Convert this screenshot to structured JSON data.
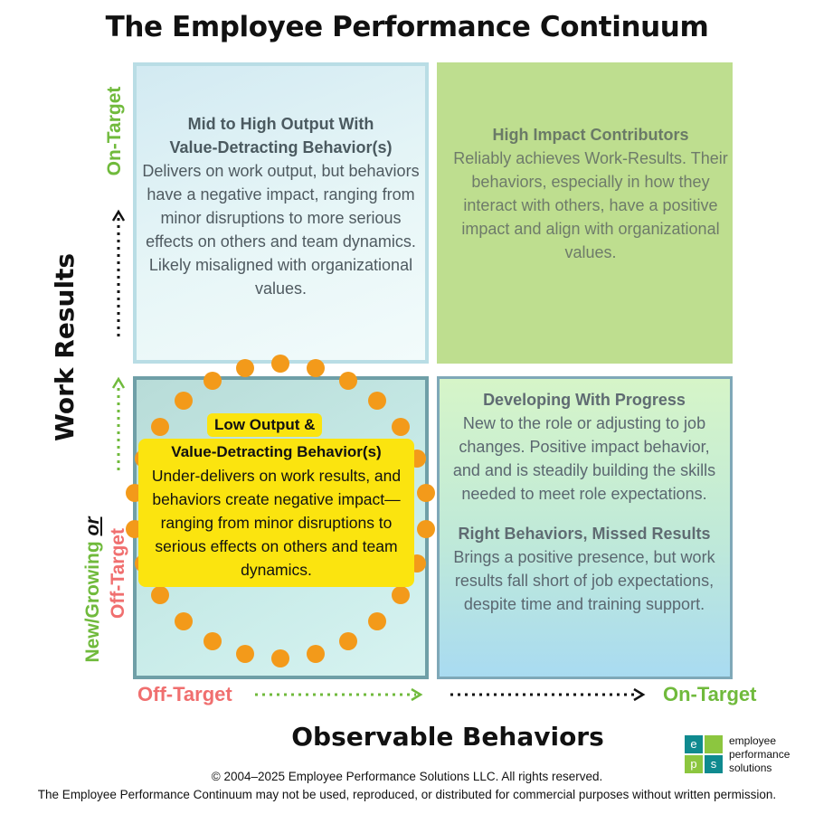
{
  "title": "The Employee Performance Continuum",
  "quadrants": {
    "top_left": {
      "heading_line1": "Mid to High Output With",
      "heading_line2": "Value-Detracting Behavior(s)",
      "body": "Delivers on work output, but behaviors have a negative impact, ranging from minor disruptions to more serious effects on others and team dynamics. Likely misaligned with organizational values."
    },
    "top_right": {
      "heading": "High Impact Contributors",
      "body": "Reliably achieves Work-Results.  Their behaviors, especially in how they interact with others, have a positive impact and align with organizational values."
    },
    "bottom_left": {
      "heading_line1": "Low Output &",
      "heading_line2": "Value-Detracting  Behavior(s)",
      "body": "Under-delivers on work results, and behaviors create negative impact—ranging from minor disruptions to serious effects on others and team dynamics."
    },
    "bottom_right_top": {
      "heading": "Developing With Progress",
      "body": "New to the role or adjusting to job changes. Positive impact behavior, and and is steadily building the skills needed to meet role expectations."
    },
    "bottom_right_bottom": {
      "heading": "Right Behaviors, Missed Results",
      "body": "Brings a positive presence, but work results fall short of job expectations, despite time and training support."
    }
  },
  "y_axis": {
    "label": "Work Results",
    "top": "On-Target",
    "bottom_green": "New/Growing",
    "bottom_or": "or",
    "bottom_red": "Off-Target"
  },
  "x_axis": {
    "label": "Observable Behaviors",
    "left": "Off-Target",
    "right": "On-Target"
  },
  "footer": {
    "copyright": "© 2004–2025 Employee Performance Solutions LLC. All rights reserved.",
    "disclaimer": "The Employee Performance Continuum may not be used, reproduced, or distributed for commercial purposes without written permission."
  },
  "logo": {
    "letters": [
      "e",
      "p",
      "s"
    ],
    "line1": "employee",
    "line2": "performance",
    "line3": "solutions"
  },
  "colors": {
    "green": "#70ba3c",
    "red": "#f06f6f",
    "orange_dots": "#f39a1a",
    "highlight": "#fbe40f",
    "logo_teal": "#0f8a8f",
    "logo_green": "#8cc63f"
  }
}
